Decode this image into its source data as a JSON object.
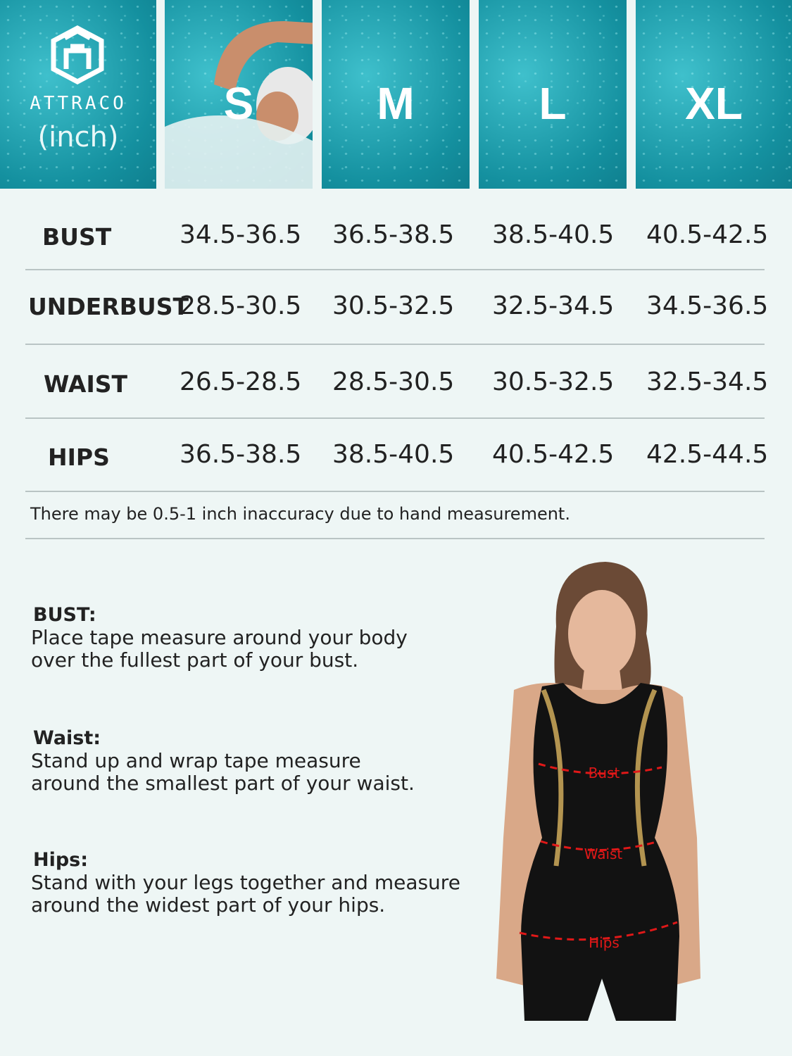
{
  "brand": {
    "name": "ATTRACO",
    "unit": "(inch)"
  },
  "sizes": [
    "S",
    "M",
    "L",
    "XL"
  ],
  "table": {
    "rows": [
      {
        "label": "BUST",
        "values": [
          "34.5-36.5",
          "36.5-38.5",
          "38.5-40.5",
          "40.5-42.5"
        ]
      },
      {
        "label": "UNDERBUST",
        "values": [
          "28.5-30.5",
          "30.5-32.5",
          "32.5-34.5",
          "34.5-36.5"
        ]
      },
      {
        "label": "WAIST",
        "values": [
          "26.5-28.5",
          "28.5-30.5",
          "30.5-32.5",
          "32.5-34.5"
        ]
      },
      {
        "label": "HIPS",
        "values": [
          "36.5-38.5",
          "38.5-40.5",
          "40.5-42.5",
          "42.5-44.5"
        ]
      }
    ],
    "note": "There may be 0.5-1 inch inaccuracy due to hand measurement."
  },
  "guides": [
    {
      "title": "BUST:",
      "line1": "Place tape measure around your body",
      "line2": "over the fullest part of your bust."
    },
    {
      "title": "Waist:",
      "line1": "Stand up and wrap tape measure",
      "line2": "around the smallest part of your waist."
    },
    {
      "title": "Hips:",
      "line1": "Stand with your legs together and measure",
      "line2": " around the widest part of your hips."
    }
  ],
  "figure_labels": {
    "bust": "Bust",
    "waist": "Waist",
    "hips": "Hips"
  },
  "colors": {
    "background": "#eef6f5",
    "header": "#1a9aa8",
    "measure": "#e01818"
  }
}
